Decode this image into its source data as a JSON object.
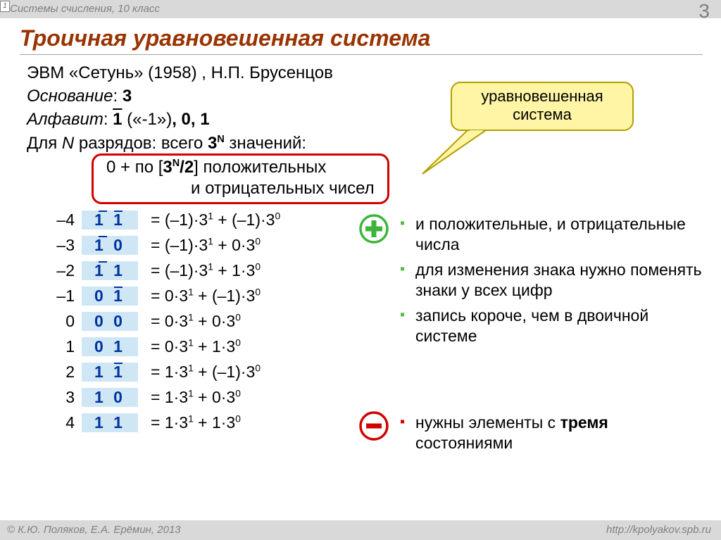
{
  "page": {
    "topic": "Системы счисления, 10 класс",
    "badge": "1",
    "number": "3",
    "title": "Троичная уравновешенная система",
    "footer_left": "© К.Ю. Поляков, Е.А. Ерёмин, 2013",
    "footer_right": "http://kpolyakov.spb.ru"
  },
  "intro": {
    "line1": "ЭВМ «Сетунь» (1958) , Н.П. Брусенцов",
    "base_label": "Основание",
    "base_value": "3",
    "alpha_label": "Алфавит",
    "alpha_html": "<span class=\"overline-char\"><b>1</b></span> («-1»)<b>, 0, 1</b>",
    "line4_pre": "Для ",
    "line4_N": "N",
    "line4_mid": " разрядов: всего ",
    "line4_exp": "3<sup>N</sup>",
    "line4_post": " значений:",
    "redbox_l1": "0 + по [<b>3<sup>N</sup>/2</b>] положительных",
    "redbox_l2": "и отрицательных чисел"
  },
  "callout": {
    "line1": "уравновешенная",
    "line2": "система"
  },
  "table": [
    {
      "dec": "–4",
      "trit": "1 1",
      "ov1": true,
      "ov2": true,
      "eq": "= (–1)·3<sup>1</sup> + (–1)·3<sup>0</sup>"
    },
    {
      "dec": "–3",
      "trit": "1 0",
      "ov1": true,
      "ov2": false,
      "eq": "= (–1)·3<sup>1</sup> + 0·3<sup>0</sup>"
    },
    {
      "dec": "–2",
      "trit": "1 1",
      "ov1": true,
      "ov2": false,
      "eq": "= (–1)·3<sup>1</sup> + 1·3<sup>0</sup>"
    },
    {
      "dec": "–1",
      "trit": "0 1",
      "ov1": false,
      "ov2": true,
      "eq": "= 0·3<sup>1</sup> + (–1)·3<sup>0</sup>"
    },
    {
      "dec": "0",
      "trit": "0 0",
      "ov1": false,
      "ov2": false,
      "eq": "= 0·3<sup>1</sup> + 0·3<sup>0</sup>"
    },
    {
      "dec": "1",
      "trit": "0 1",
      "ov1": false,
      "ov2": false,
      "eq": "= 0·3<sup>1</sup> + 1·3<sup>0</sup>"
    },
    {
      "dec": "2",
      "trit": "1 1",
      "ov1": false,
      "ov2": true,
      "eq": "= 1·3<sup>1</sup> + (–1)·3<sup>0</sup>"
    },
    {
      "dec": "3",
      "trit": "1 0",
      "ov1": false,
      "ov2": false,
      "eq": "= 1·3<sup>1</sup> + 0·3<sup>0</sup>"
    },
    {
      "dec": "4",
      "trit": "1 1",
      "ov1": false,
      "ov2": false,
      "eq": "= 1·3<sup>1</sup> + 1·3<sup>0</sup>"
    }
  ],
  "pros": [
    "и положительные, и отрицательные числа",
    "для изменения знака нужно поменять знаки у всех цифр",
    "запись короче, чем в двоичной системе"
  ],
  "cons_html": "нужны элементы с <b>тремя</b> состояниями",
  "colors": {
    "title": "#993300",
    "border": "#a6a6a6",
    "red": "#d00000",
    "trit_bg": "#cfe6f5",
    "trit_fg": "#0033a0",
    "callout_bg": "#fff5a5",
    "gray": "#808080",
    "green": "#3cb43c"
  }
}
